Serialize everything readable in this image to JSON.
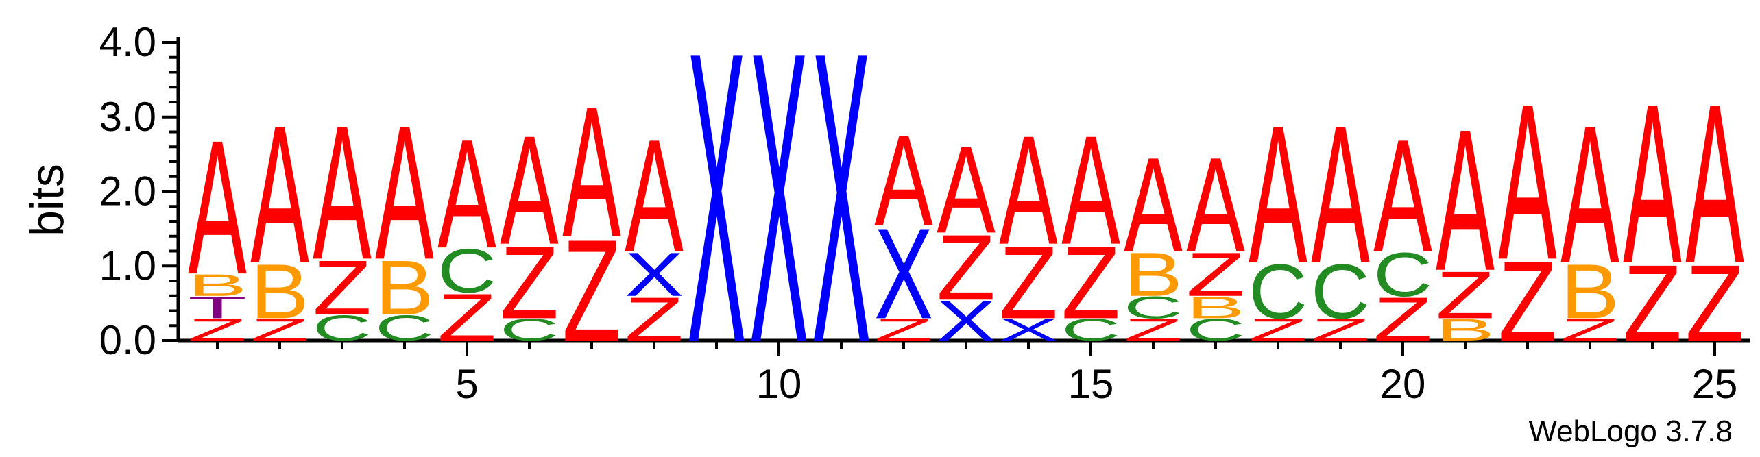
{
  "chart_data": {
    "type": "sequence-logo",
    "ylabel": "bits",
    "ylim": [
      0,
      4.0
    ],
    "y_ticks": [
      "0.0",
      "1.0",
      "2.0",
      "3.0",
      "4.0"
    ],
    "x_ticks": [
      "5",
      "10",
      "15",
      "20",
      "25"
    ],
    "x_range": [
      1,
      25
    ],
    "colors": {
      "A": "#ff0000",
      "Z": "#ff0000",
      "X": "#0000ff",
      "B": "#ff9900",
      "C": "#228b22",
      "T": "#800080"
    },
    "positions": [
      {
        "pos": 1,
        "stack": [
          {
            "letter": "Z",
            "bits": 0.3
          },
          {
            "letter": "T",
            "bits": 0.3
          },
          {
            "letter": "B",
            "bits": 0.3
          },
          {
            "letter": "A",
            "bits": 1.85
          }
        ]
      },
      {
        "pos": 2,
        "stack": [
          {
            "letter": "Z",
            "bits": 0.3
          },
          {
            "letter": "B",
            "bits": 0.75
          },
          {
            "letter": "A",
            "bits": 1.9
          }
        ]
      },
      {
        "pos": 3,
        "stack": [
          {
            "letter": "C",
            "bits": 0.35
          },
          {
            "letter": "Z",
            "bits": 0.75
          },
          {
            "letter": "A",
            "bits": 1.85
          }
        ]
      },
      {
        "pos": 4,
        "stack": [
          {
            "letter": "C",
            "bits": 0.35
          },
          {
            "letter": "B",
            "bits": 0.75
          },
          {
            "letter": "A",
            "bits": 1.85
          }
        ]
      },
      {
        "pos": 5,
        "stack": [
          {
            "letter": "Z",
            "bits": 0.65
          },
          {
            "letter": "C",
            "bits": 0.6
          },
          {
            "letter": "A",
            "bits": 1.5
          }
        ]
      },
      {
        "pos": 6,
        "stack": [
          {
            "letter": "C",
            "bits": 0.3
          },
          {
            "letter": "Z",
            "bits": 1.0
          },
          {
            "letter": "A",
            "bits": 1.5
          }
        ]
      },
      {
        "pos": 7,
        "stack": [
          {
            "letter": "Z",
            "bits": 1.4
          },
          {
            "letter": "A",
            "bits": 1.8
          }
        ]
      },
      {
        "pos": 8,
        "stack": [
          {
            "letter": "Z",
            "bits": 0.6
          },
          {
            "letter": "X",
            "bits": 0.6
          },
          {
            "letter": "A",
            "bits": 1.55
          }
        ]
      },
      {
        "pos": 9,
        "stack": [
          {
            "letter": "X",
            "bits": 4.0
          }
        ]
      },
      {
        "pos": 10,
        "stack": [
          {
            "letter": "X",
            "bits": 4.0
          }
        ]
      },
      {
        "pos": 11,
        "stack": [
          {
            "letter": "X",
            "bits": 4.0
          }
        ]
      },
      {
        "pos": 12,
        "stack": [
          {
            "letter": "Z",
            "bits": 0.3
          },
          {
            "letter": "X",
            "bits": 1.25
          },
          {
            "letter": "A",
            "bits": 1.25
          }
        ]
      },
      {
        "pos": 13,
        "stack": [
          {
            "letter": "X",
            "bits": 0.55
          },
          {
            "letter": "Z",
            "bits": 0.9
          },
          {
            "letter": "A",
            "bits": 1.2
          }
        ]
      },
      {
        "pos": 14,
        "stack": [
          {
            "letter": "X",
            "bits": 0.3
          },
          {
            "letter": "Z",
            "bits": 1.0
          },
          {
            "letter": "A",
            "bits": 1.5
          }
        ]
      },
      {
        "pos": 15,
        "stack": [
          {
            "letter": "C",
            "bits": 0.3
          },
          {
            "letter": "Z",
            "bits": 1.0
          },
          {
            "letter": "A",
            "bits": 1.5
          }
        ]
      },
      {
        "pos": 16,
        "stack": [
          {
            "letter": "Z",
            "bits": 0.3
          },
          {
            "letter": "C",
            "bits": 0.3
          },
          {
            "letter": "B",
            "bits": 0.6
          },
          {
            "letter": "A",
            "bits": 1.3
          }
        ]
      },
      {
        "pos": 17,
        "stack": [
          {
            "letter": "C",
            "bits": 0.3
          },
          {
            "letter": "B",
            "bits": 0.3
          },
          {
            "letter": "Z",
            "bits": 0.6
          },
          {
            "letter": "A",
            "bits": 1.3
          }
        ]
      },
      {
        "pos": 18,
        "stack": [
          {
            "letter": "Z",
            "bits": 0.3
          },
          {
            "letter": "C",
            "bits": 0.75
          },
          {
            "letter": "A",
            "bits": 1.9
          }
        ]
      },
      {
        "pos": 19,
        "stack": [
          {
            "letter": "Z",
            "bits": 0.3
          },
          {
            "letter": "C",
            "bits": 0.75
          },
          {
            "letter": "A",
            "bits": 1.9
          }
        ]
      },
      {
        "pos": 20,
        "stack": [
          {
            "letter": "Z",
            "bits": 0.6
          },
          {
            "letter": "C",
            "bits": 0.6
          },
          {
            "letter": "A",
            "bits": 1.55
          }
        ]
      },
      {
        "pos": 21,
        "stack": [
          {
            "letter": "B",
            "bits": 0.3
          },
          {
            "letter": "Z",
            "bits": 0.65
          },
          {
            "letter": "A",
            "bits": 1.95
          }
        ]
      },
      {
        "pos": 22,
        "stack": [
          {
            "letter": "Z",
            "bits": 1.1
          },
          {
            "letter": "A",
            "bits": 2.15
          }
        ]
      },
      {
        "pos": 23,
        "stack": [
          {
            "letter": "Z",
            "bits": 0.3
          },
          {
            "letter": "B",
            "bits": 0.75
          },
          {
            "letter": "A",
            "bits": 1.9
          }
        ]
      },
      {
        "pos": 24,
        "stack": [
          {
            "letter": "Z",
            "bits": 1.05
          },
          {
            "letter": "A",
            "bits": 2.2
          }
        ]
      },
      {
        "pos": 25,
        "stack": [
          {
            "letter": "Z",
            "bits": 1.05
          },
          {
            "letter": "A",
            "bits": 2.2
          }
        ]
      }
    ]
  },
  "footer": {
    "credit": "WebLogo 3.7.8"
  }
}
